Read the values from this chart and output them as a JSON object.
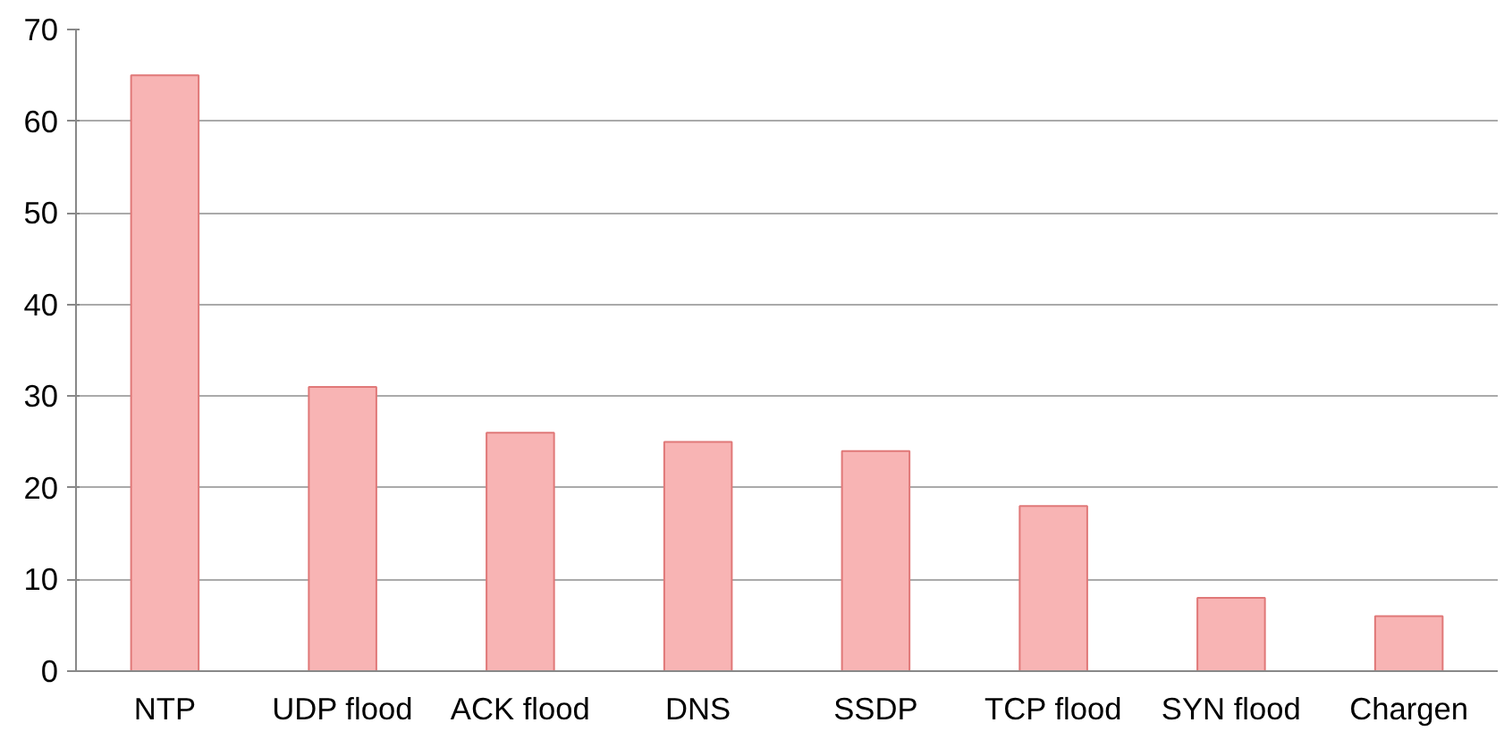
{
  "chart_data": {
    "type": "bar",
    "categories": [
      "NTP",
      "UDP flood",
      "ACK flood",
      "DNS",
      "SSDP",
      "TCP flood",
      "SYN flood",
      "Chargen"
    ],
    "values": [
      65,
      31,
      26,
      25,
      24,
      18,
      8,
      6
    ],
    "color": "#f8b4b4",
    "ylim": [
      0,
      70
    ],
    "yticks": [
      0,
      10,
      20,
      30,
      40,
      50,
      60,
      70
    ],
    "grid": "y"
  }
}
